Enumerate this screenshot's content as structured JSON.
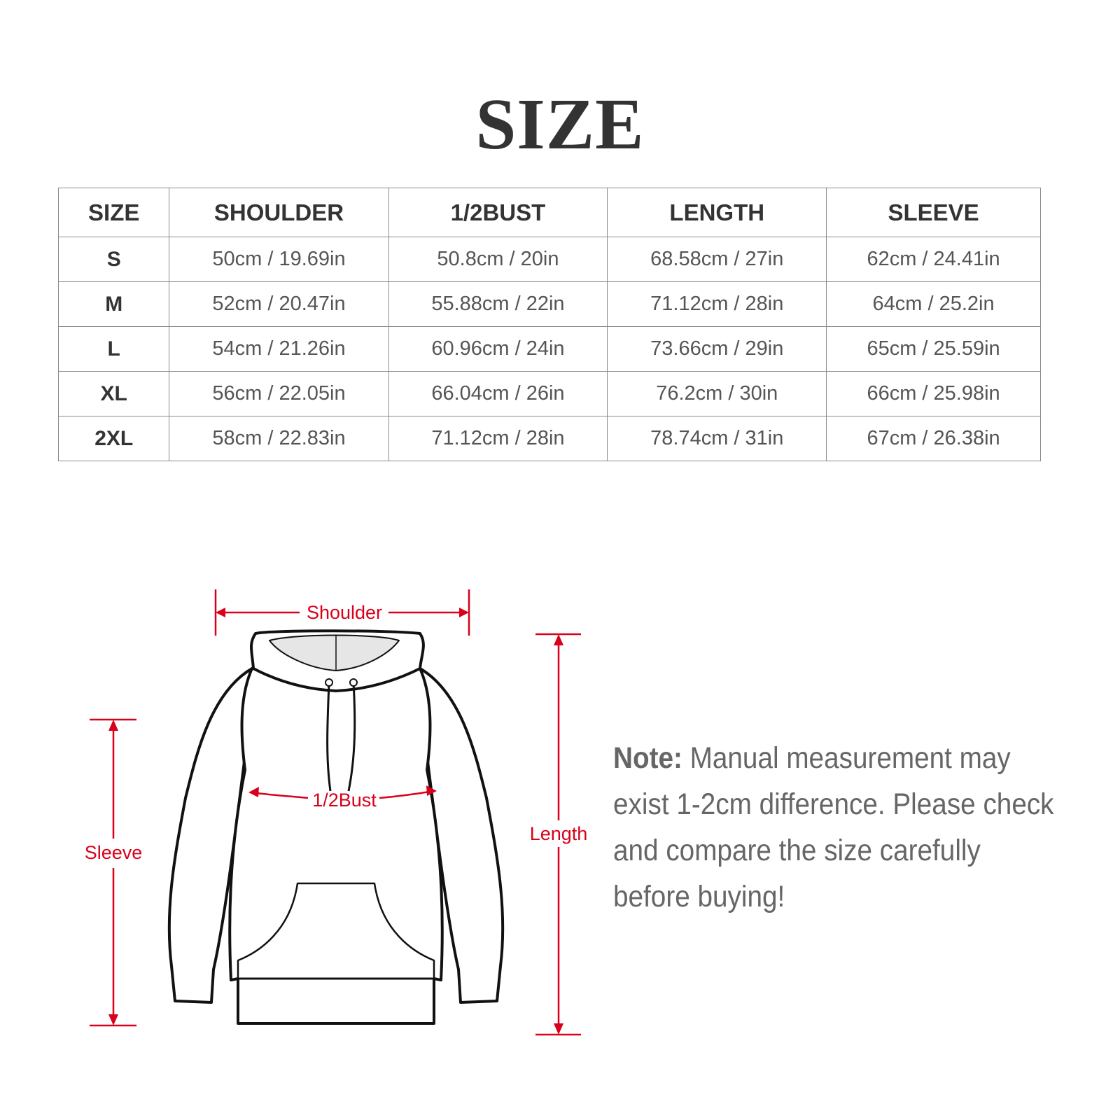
{
  "title": "SIZE",
  "table": {
    "headers": [
      "SIZE",
      "SHOULDER",
      "1/2BUST",
      "LENGTH",
      "SLEEVE"
    ],
    "rows": [
      [
        "S",
        "50cm / 19.69in",
        "50.8cm / 20in",
        "68.58cm / 27in",
        "62cm / 24.41in"
      ],
      [
        "M",
        "52cm / 20.47in",
        "55.88cm / 22in",
        "71.12cm / 28in",
        "64cm / 25.2in"
      ],
      [
        "L",
        "54cm / 21.26in",
        "60.96cm / 24in",
        "73.66cm / 29in",
        "65cm / 25.59in"
      ],
      [
        "XL",
        "56cm / 22.05in",
        "66.04cm / 26in",
        "76.2cm / 30in",
        "66cm / 25.98in"
      ],
      [
        "2XL",
        "58cm / 22.83in",
        "71.12cm / 28in",
        "78.74cm / 31in",
        "67cm / 26.38in"
      ]
    ]
  },
  "diagram": {
    "labels": {
      "shoulder": "Shoulder",
      "bust": "1/2Bust",
      "length": "Length",
      "sleeve": "Sleeve"
    },
    "measure_color": "#d9001b"
  },
  "note": {
    "label": "Note:",
    "text": " Manual measurement may exist 1-2cm difference. Please check and compare the size carefully before buying!"
  }
}
